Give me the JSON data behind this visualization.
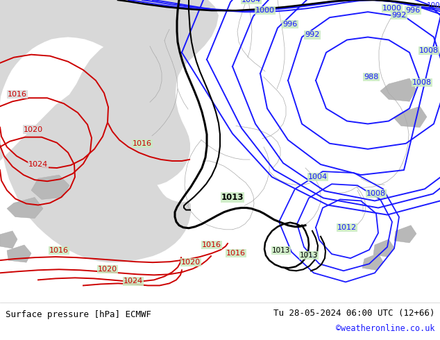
{
  "title_left": "Surface pressure [hPa] ECMWF",
  "title_right": "Tu 28-05-2024 06:00 UTC (12+66)",
  "credit": "©weatheronline.co.uk",
  "bg_ocean": "#d8d8d8",
  "bg_land": "#c8eac0",
  "border_color": "#aaaaaa",
  "blue": "#1a1aff",
  "red": "#cc0000",
  "black": "#000000",
  "footer_bg": "#ffffff",
  "figsize": [
    6.34,
    4.9
  ],
  "dpi": 100
}
